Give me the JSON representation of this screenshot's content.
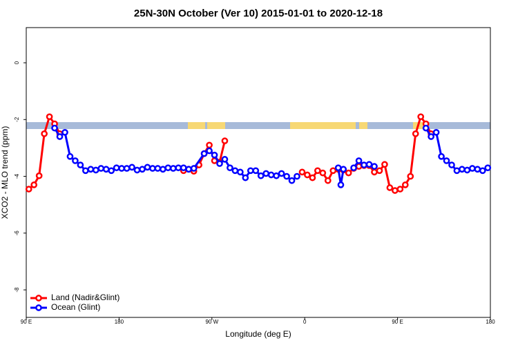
{
  "chart_data": {
    "type": "line",
    "title": "25N-30N October (Ver 10)   2015-01-01 to 2020-12-18",
    "x_label": "Longitude (deg E)",
    "y_label": "XCO2 - MLO trend (ppm)",
    "xlim": [
      90,
      540
    ],
    "ylim": [
      -8.97,
      1.24
    ],
    "xticks": [
      {
        "value": 90,
        "label": "90 E"
      },
      180,
      {
        "value": 270,
        "label": "90 W"
      },
      {
        "value": 360,
        "label": "0"
      },
      {
        "value": 450,
        "label": "90 E"
      },
      {
        "value": 540,
        "label": "180"
      }
    ],
    "yticks": [
      0,
      -2,
      -4,
      -6,
      -8
    ],
    "legend": "bottom-left",
    "series": [
      {
        "name": "Land (Nadir&Glint)",
        "color": "#ff0000",
        "x": [
          92.5,
          97.5,
          102.5,
          107.5,
          112.5,
          117.5,
          122.5,
          null,
          242.5,
          247.5,
          252.5,
          257.5,
          262.5,
          267.5,
          272.5,
          277.5,
          282.5,
          null,
          357.5,
          362.5,
          367.5,
          372.5,
          377.5,
          382.5,
          387.5,
          392.5,
          397.5,
          402.5,
          407.5,
          412.5,
          417.5,
          422.5,
          427.5,
          432.5,
          437.5,
          442.5,
          447.5,
          452.5,
          457.5,
          462.5,
          467.5,
          472.5,
          477.5,
          482.5
        ],
        "values": [
          -4.45,
          -4.3,
          -3.98,
          -2.5,
          -1.9,
          -2.15,
          -2.5,
          null,
          -3.8,
          -3.75,
          -3.82,
          -3.6,
          -3.2,
          -2.9,
          -3.45,
          -3.5,
          -2.75,
          null,
          -3.85,
          -3.95,
          -4.05,
          -3.8,
          -3.88,
          -4.15,
          -3.8,
          -3.75,
          -3.78,
          -3.88,
          -3.72,
          -3.65,
          -3.62,
          -3.62,
          -3.85,
          -3.8,
          -3.58,
          -4.4,
          -4.5,
          -4.45,
          -4.3,
          -4.0,
          -2.5,
          -1.9,
          -2.15,
          -2.5
        ]
      },
      {
        "name": "Ocean (Glint)",
        "color": "#0000ff",
        "x": [
          117.5,
          122.5,
          127.5,
          132.5,
          137.5,
          142.5,
          147.5,
          152.5,
          157.5,
          162.5,
          167.5,
          172.5,
          177.5,
          182.5,
          187.5,
          192.5,
          197.5,
          202.5,
          207.5,
          212.5,
          217.5,
          222.5,
          227.5,
          232.5,
          237.5,
          242.5,
          247.5,
          252.5,
          262.5,
          267.5,
          272.5,
          277.5,
          282.5,
          287.5,
          292.5,
          297.5,
          302.5,
          307.5,
          312.5,
          317.5,
          322.5,
          327.5,
          332.5,
          337.5,
          342.5,
          347.5,
          352.5,
          null,
          392.5,
          395,
          397.5,
          null,
          407.5,
          412.5,
          417.5,
          422.5,
          427.5,
          null,
          477.5,
          482.5,
          487.5,
          492.5,
          497.5,
          502.5,
          507.5,
          512.5,
          517.5,
          522.5,
          527.5,
          532.5,
          537.5
        ],
        "values": [
          -2.3,
          -2.6,
          -2.45,
          -3.3,
          -3.45,
          -3.6,
          -3.8,
          -3.75,
          -3.78,
          -3.72,
          -3.75,
          -3.8,
          -3.7,
          -3.72,
          -3.72,
          -3.68,
          -3.78,
          -3.75,
          -3.68,
          -3.72,
          -3.72,
          -3.75,
          -3.7,
          -3.72,
          -3.7,
          -3.7,
          -3.75,
          -3.72,
          -3.2,
          -3.1,
          -3.25,
          -3.55,
          -3.4,
          -3.7,
          -3.8,
          -3.85,
          -4.05,
          -3.8,
          -3.8,
          -3.98,
          -3.9,
          -3.95,
          -3.98,
          -3.9,
          -4.0,
          -4.15,
          -4.0,
          null,
          -3.7,
          -4.3,
          -3.75,
          null,
          -3.7,
          -3.45,
          -3.6,
          -3.58,
          -3.65,
          null,
          -2.3,
          -2.6,
          -2.45,
          -3.3,
          -3.45,
          -3.6,
          -3.8,
          -3.75,
          -3.78,
          -3.72,
          -3.75,
          -3.8,
          -3.7
        ]
      }
    ]
  }
}
